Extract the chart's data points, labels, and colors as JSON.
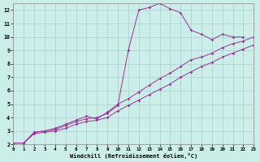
{
  "bg_color": "#cceee8",
  "grid_color": "#aacccc",
  "line_color": "#993399",
  "xlabel": "Windchill (Refroidissement éolien,°C)",
  "xlim": [
    0,
    23
  ],
  "ylim": [
    2,
    12.5
  ],
  "xticks": [
    0,
    1,
    2,
    3,
    4,
    5,
    6,
    7,
    8,
    9,
    10,
    11,
    12,
    13,
    14,
    15,
    16,
    17,
    18,
    19,
    20,
    21,
    22,
    23
  ],
  "yticks": [
    2,
    3,
    4,
    5,
    6,
    7,
    8,
    9,
    10,
    11,
    12
  ],
  "line1_x": [
    0,
    1,
    2,
    3,
    4,
    5,
    6,
    7,
    8,
    9,
    10,
    11,
    12,
    13,
    14,
    15,
    16,
    17,
    18,
    19,
    20,
    21,
    22
  ],
  "line1_y": [
    2.1,
    2.1,
    2.9,
    3.0,
    3.1,
    3.4,
    3.7,
    3.9,
    4.0,
    4.3,
    4.9,
    9.0,
    12.0,
    12.2,
    12.5,
    12.1,
    11.8,
    10.5,
    10.2,
    9.8,
    10.2,
    10.0,
    10.0
  ],
  "line2_x": [
    0,
    1,
    2,
    3,
    4,
    5,
    6,
    7,
    8,
    9,
    10,
    11,
    12,
    13,
    14,
    15,
    16,
    17,
    18,
    19,
    20,
    21,
    22,
    23
  ],
  "line2_y": [
    2.1,
    2.1,
    2.9,
    3.0,
    3.2,
    3.5,
    3.8,
    4.1,
    3.9,
    4.4,
    5.0,
    5.4,
    5.9,
    6.4,
    6.9,
    7.3,
    7.8,
    8.3,
    8.5,
    8.8,
    9.2,
    9.5,
    9.7,
    10.0
  ],
  "line3_x": [
    0,
    1,
    2,
    3,
    4,
    5,
    6,
    7,
    8,
    9,
    10,
    11,
    12,
    13,
    14,
    15,
    16,
    17,
    18,
    19,
    20,
    21,
    22,
    23
  ],
  "line3_y": [
    2.1,
    2.1,
    2.8,
    2.9,
    3.0,
    3.2,
    3.5,
    3.7,
    3.8,
    4.0,
    4.5,
    4.9,
    5.3,
    5.7,
    6.1,
    6.5,
    7.0,
    7.4,
    7.8,
    8.1,
    8.5,
    8.8,
    9.1,
    9.4
  ]
}
